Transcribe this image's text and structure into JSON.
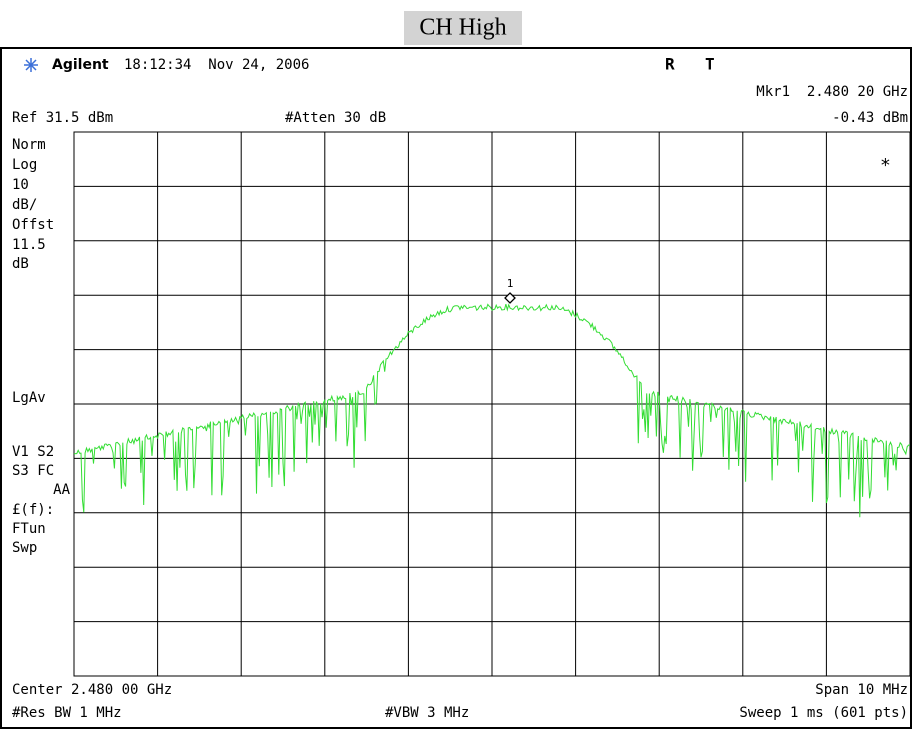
{
  "title": "CH High",
  "header": {
    "brand": "Agilent",
    "timestamp": "18:12:34  Nov 24, 2006",
    "status_r": "R",
    "status_t": "T"
  },
  "marker": {
    "label": "Mkr1  2.480 20 GHz",
    "level": "-0.43 dBm",
    "id": "1"
  },
  "settings": {
    "ref": "Ref 31.5 dBm",
    "atten": "#Atten 30 dB"
  },
  "left_panel": [
    "Norm",
    "Log",
    "10",
    "dB/",
    "Offst",
    "11.5",
    "dB",
    "LgAv",
    "V1  S2",
    "S3  FC",
    "AA",
    "£(f):",
    "FTun",
    "Swp"
  ],
  "star": "*",
  "footer": {
    "center": "Center 2.480 00 GHz",
    "span": "Span 10 MHz",
    "rbw": "#Res BW 1 MHz",
    "vbw": "#VBW 3 MHz",
    "sweep": "Sweep 1 ms (601 pts)"
  }
}
